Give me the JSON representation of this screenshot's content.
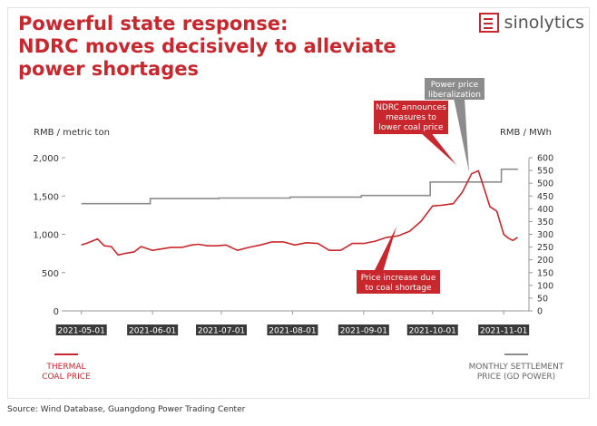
{
  "title_lines": [
    "Powerful state response:",
    "NDRC moves decisively to alleviate",
    "power shortages"
  ],
  "brand": {
    "name": "sinolytics",
    "icon": "sinolytics-logo-icon"
  },
  "source": "Source: Wind Database, Guangdong Power Trading Center",
  "colors": {
    "coal": "#c8282d",
    "power": "#8c8c8c",
    "title": "#c8282d",
    "date_tag": "#3a3a3a"
  },
  "legend": {
    "coal": [
      "THERMAL",
      "COAL PRICE"
    ],
    "power": [
      "MONTHLY SETTLEMENT",
      "PRICE (GD POWER)"
    ]
  },
  "callouts": {
    "ndrc": [
      "NDRC announces",
      "measures to",
      "lower coal price"
    ],
    "liberalization": [
      "Power price",
      "liberalization"
    ],
    "increase": [
      "Price increase due",
      "to coal shortage"
    ]
  },
  "chart_data": {
    "type": "line",
    "x_tick_labels": [
      "2021-05-01",
      "2021-06-01",
      "2021-07-01",
      "2021-08-01",
      "2021-09-01",
      "2021-10-01",
      "2021-11-01"
    ],
    "y_left": {
      "label": "RMB / metric ton",
      "range": [
        0,
        2000
      ],
      "ticks": [
        "0",
        "500",
        "1,000",
        "1,500",
        "2,000"
      ]
    },
    "y_right": {
      "label": "RMB / MWh",
      "range": [
        0,
        600
      ],
      "ticks": [
        "0",
        "50",
        "100",
        "150",
        "200",
        "250",
        "300",
        "350",
        "400",
        "450",
        "500",
        "550",
        "600"
      ]
    },
    "series": [
      {
        "name": "THERMAL COAL PRICE",
        "axis": "left",
        "x": [
          "2021-05-01",
          "2021-05-04",
          "2021-05-08",
          "2021-05-11",
          "2021-05-14",
          "2021-05-17",
          "2021-05-20",
          "2021-05-24",
          "2021-05-27",
          "2021-06-01",
          "2021-06-05",
          "2021-06-09",
          "2021-06-14",
          "2021-06-18",
          "2021-06-21",
          "2021-06-25",
          "2021-06-29",
          "2021-07-03",
          "2021-07-08",
          "2021-07-13",
          "2021-07-18",
          "2021-07-23",
          "2021-07-28",
          "2021-08-02",
          "2021-08-07",
          "2021-08-12",
          "2021-08-17",
          "2021-08-22",
          "2021-08-27",
          "2021-09-01",
          "2021-09-06",
          "2021-09-11",
          "2021-09-16",
          "2021-09-21",
          "2021-09-26",
          "2021-10-01",
          "2021-10-05",
          "2021-10-10",
          "2021-10-14",
          "2021-10-18",
          "2021-10-21",
          "2021-10-24",
          "2021-10-26",
          "2021-10-29",
          "2021-11-01",
          "2021-11-03",
          "2021-11-05",
          "2021-11-07"
        ],
        "values": [
          860,
          890,
          940,
          850,
          840,
          730,
          750,
          770,
          840,
          790,
          810,
          830,
          830,
          860,
          870,
          850,
          850,
          860,
          790,
          830,
          860,
          900,
          900,
          860,
          890,
          880,
          790,
          790,
          880,
          880,
          910,
          960,
          980,
          1040,
          1170,
          1370,
          1380,
          1400,
          1550,
          1790,
          1830,
          1550,
          1360,
          1300,
          1000,
          950,
          920,
          960
        ]
      },
      {
        "name": "MONTHLY SETTLEMENT PRICE (GD POWER)",
        "axis": "right",
        "x": [
          "2021-05-01",
          "2021-05-24",
          "2021-05-31",
          "2021-06-30",
          "2021-07-31",
          "2021-08-31",
          "2021-09-30",
          "2021-10-31",
          "2021-11-07"
        ],
        "values": [
          420,
          420,
          440,
          442,
          446,
          452,
          505,
          555,
          556
        ]
      }
    ]
  }
}
